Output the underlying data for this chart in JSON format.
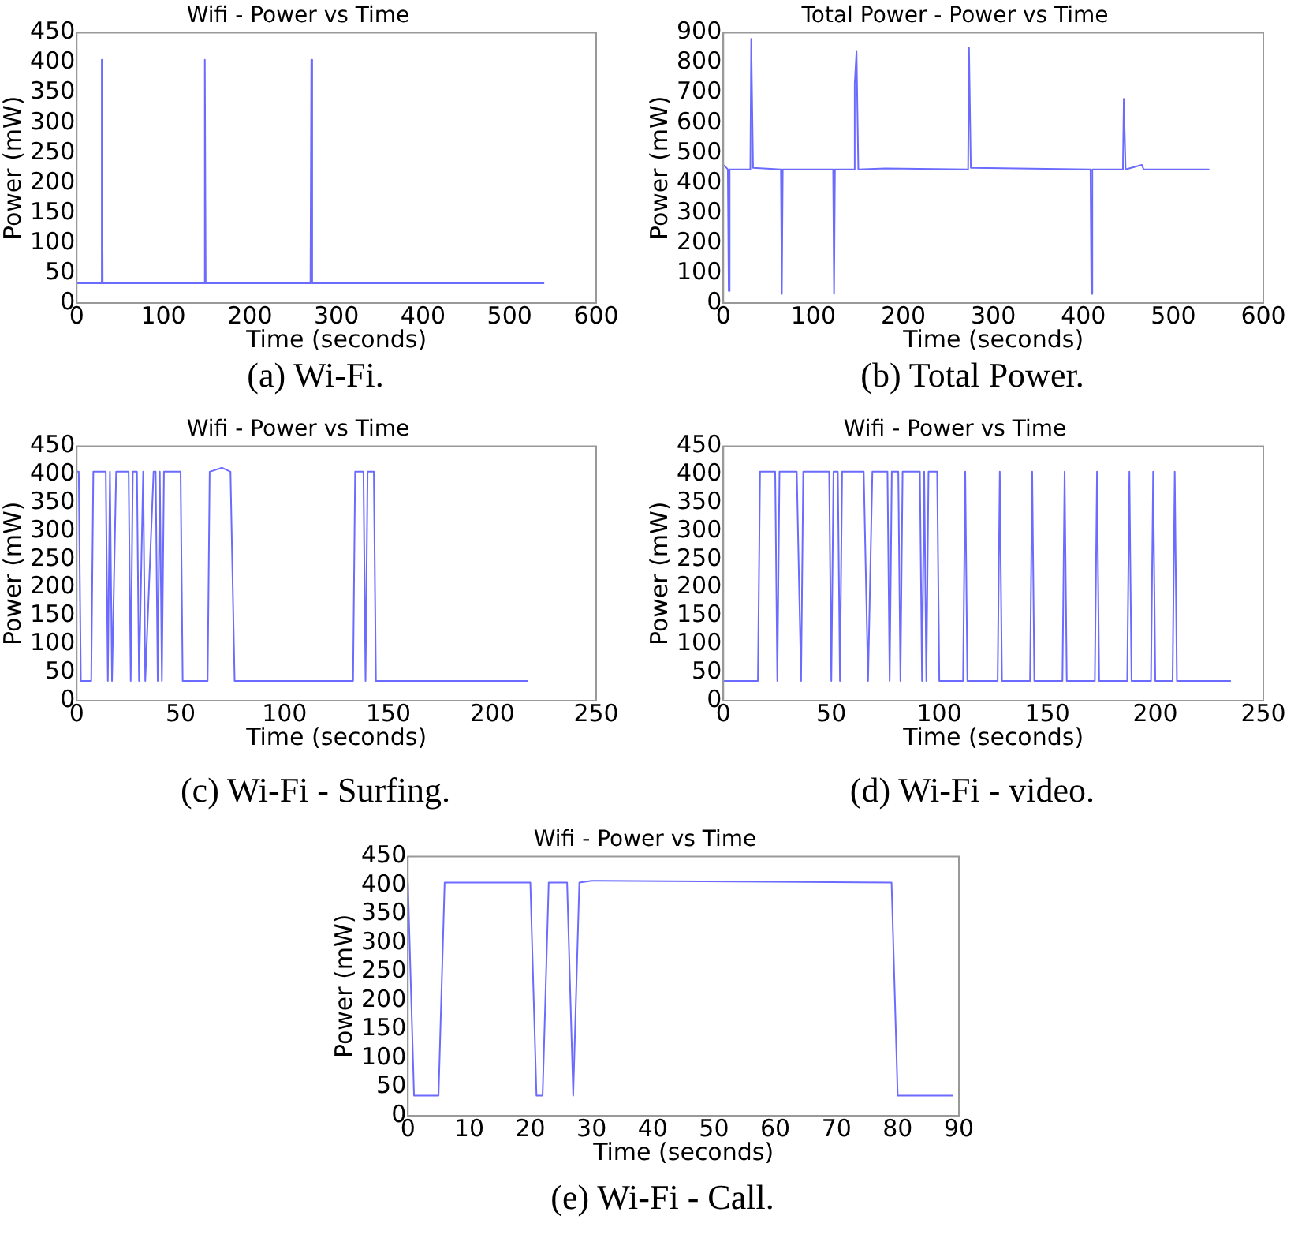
{
  "chart_data": [
    {
      "type": "line",
      "title": "Wifi - Power vs Time",
      "xlabel": "Time (seconds)",
      "ylabel": "Power (mW)",
      "color": "#6b6bff",
      "marker": "none",
      "grid": false,
      "legend": false,
      "xlim": [
        0,
        600
      ],
      "xticks": [
        0,
        100,
        200,
        300,
        400,
        500,
        600
      ],
      "ylim": [
        0,
        450
      ],
      "yticks": [
        0,
        50,
        100,
        150,
        200,
        250,
        300,
        350,
        400,
        450
      ],
      "annotations": [
        "(a) Wi-Fi."
      ],
      "x": [
        0,
        28,
        29,
        30,
        147,
        148,
        149,
        270,
        271,
        272,
        540
      ],
      "values": [
        33,
        33,
        405,
        33,
        33,
        405,
        33,
        33,
        405,
        33,
        33
      ]
    },
    {
      "type": "line",
      "title": "Total Power - Power vs Time",
      "xlabel": "Time (seconds)",
      "ylabel": "Power (mW)",
      "color": "#6b6bff",
      "marker": "none",
      "grid": false,
      "legend": false,
      "xlim": [
        0,
        600
      ],
      "xticks": [
        0,
        100,
        200,
        300,
        400,
        500,
        600
      ],
      "ylim": [
        0,
        900
      ],
      "yticks": [
        0,
        100,
        200,
        300,
        400,
        500,
        600,
        700,
        800,
        900
      ],
      "annotations": [
        "(b) Total Power."
      ],
      "x": [
        0,
        2,
        5,
        6,
        7,
        30,
        31,
        33,
        64,
        65,
        66,
        122,
        123,
        124,
        145,
        146,
        148,
        150,
        180,
        272,
        273,
        275,
        408,
        409,
        410,
        444,
        445,
        447,
        465,
        467,
        540
      ],
      "values": [
        460,
        455,
        445,
        40,
        445,
        445,
        880,
        450,
        445,
        30,
        445,
        445,
        30,
        445,
        445,
        730,
        840,
        445,
        448,
        445,
        850,
        450,
        445,
        30,
        445,
        445,
        680,
        445,
        460,
        445,
        445
      ]
    },
    {
      "type": "line",
      "title": "Wifi - Power vs Time",
      "xlabel": "Time (seconds)",
      "ylabel": "Power (mW)",
      "color": "#6b6bff",
      "marker": "none",
      "grid": false,
      "legend": false,
      "xlim": [
        0,
        250
      ],
      "xticks": [
        0,
        50,
        100,
        150,
        200,
        250
      ],
      "ylim": [
        0,
        450
      ],
      "yticks": [
        0,
        50,
        100,
        150,
        200,
        250,
        300,
        350,
        400,
        450
      ],
      "annotations": [
        "(c) Wi-Fi - Surfing."
      ],
      "x": [
        0,
        1,
        2,
        7,
        8,
        14,
        15,
        16,
        17,
        19,
        25,
        26,
        27,
        29,
        30,
        32,
        33,
        37,
        38,
        39,
        40,
        41,
        42,
        50,
        51,
        63,
        64,
        70,
        74,
        76,
        133,
        134,
        138,
        139,
        140,
        143,
        144,
        217
      ],
      "values": [
        405,
        405,
        35,
        35,
        405,
        405,
        35,
        405,
        35,
        405,
        405,
        35,
        405,
        405,
        35,
        405,
        35,
        405,
        405,
        35,
        405,
        35,
        405,
        405,
        35,
        35,
        405,
        412,
        405,
        35,
        35,
        405,
        405,
        35,
        405,
        405,
        35,
        35
      ]
    },
    {
      "type": "line",
      "title": "Wifi - Power vs Time",
      "xlabel": "Time (seconds)",
      "ylabel": "Power (mW)",
      "color": "#6b6bff",
      "marker": "none",
      "grid": false,
      "legend": false,
      "xlim": [
        0,
        250
      ],
      "xticks": [
        0,
        50,
        100,
        150,
        200,
        250
      ],
      "ylim": [
        0,
        450
      ],
      "yticks": [
        0,
        50,
        100,
        150,
        200,
        250,
        300,
        350,
        400,
        450
      ],
      "annotations": [
        "(d) Wi-Fi - video."
      ],
      "x": [
        0,
        16,
        17,
        24,
        25,
        26,
        34,
        36,
        37,
        49,
        50,
        51,
        53,
        54,
        55,
        65,
        67,
        69,
        76,
        77,
        78,
        81,
        82,
        83,
        91,
        92,
        93,
        94,
        95,
        99,
        100,
        111,
        112,
        113,
        127,
        128,
        129,
        142,
        143,
        144,
        157,
        158,
        159,
        172,
        173,
        174,
        187,
        188,
        189,
        198,
        199,
        200,
        208,
        209,
        210,
        235
      ],
      "values": [
        35,
        35,
        405,
        405,
        35,
        405,
        405,
        35,
        405,
        405,
        35,
        405,
        405,
        35,
        405,
        405,
        35,
        405,
        405,
        35,
        405,
        405,
        35,
        405,
        405,
        35,
        405,
        35,
        405,
        405,
        35,
        35,
        405,
        35,
        35,
        405,
        35,
        35,
        405,
        35,
        35,
        405,
        35,
        35,
        405,
        35,
        35,
        405,
        35,
        35,
        405,
        35,
        35,
        405,
        35,
        35
      ]
    },
    {
      "type": "line",
      "title": "Wifi - Power vs Time",
      "xlabel": "Time (seconds)",
      "ylabel": "Power (mW)",
      "color": "#6b6bff",
      "marker": "none",
      "grid": false,
      "legend": false,
      "xlim": [
        0,
        90
      ],
      "xticks": [
        0,
        10,
        20,
        30,
        40,
        50,
        60,
        70,
        80,
        90
      ],
      "ylim": [
        0,
        450
      ],
      "yticks": [
        0,
        50,
        100,
        150,
        200,
        250,
        300,
        350,
        400,
        450
      ],
      "annotations": [
        "(e) Wi-Fi - Call."
      ],
      "x": [
        0,
        1,
        5,
        6,
        20,
        21,
        22,
        23,
        26,
        27,
        28,
        30,
        79,
        80,
        89
      ],
      "values": [
        405,
        35,
        35,
        405,
        405,
        35,
        35,
        405,
        405,
        35,
        405,
        408,
        405,
        35,
        35
      ]
    }
  ]
}
